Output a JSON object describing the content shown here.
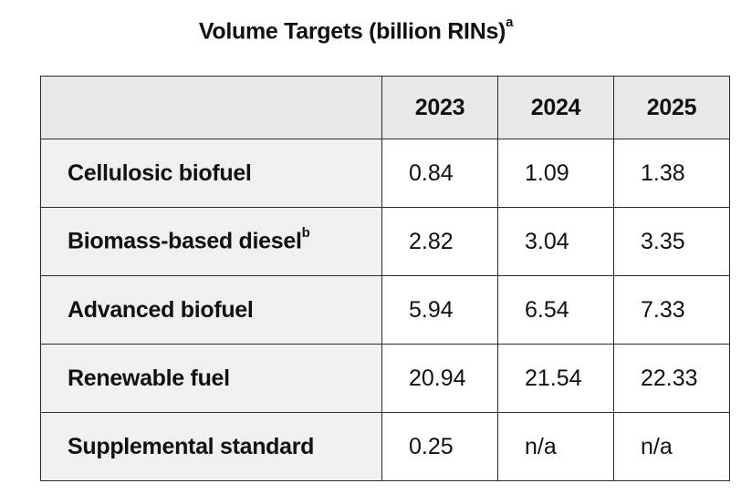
{
  "title": {
    "text": "Volume Targets (billion RINs)",
    "footnote_mark": "a"
  },
  "table": {
    "corner_header": "",
    "columns": [
      "2023",
      "2024",
      "2025"
    ],
    "rows": [
      {
        "label": "Cellulosic biofuel",
        "footnote_mark": "",
        "values": [
          "0.84",
          "1.09",
          "1.38"
        ]
      },
      {
        "label": "Biomass-based diesel",
        "footnote_mark": "b",
        "values": [
          "2.82",
          "3.04",
          "3.35"
        ]
      },
      {
        "label": "Advanced biofuel",
        "footnote_mark": "",
        "values": [
          "5.94",
          "6.54",
          "7.33"
        ]
      },
      {
        "label": "Renewable fuel",
        "footnote_mark": "",
        "values": [
          "20.94",
          "21.54",
          "22.33"
        ]
      },
      {
        "label": "Supplemental standard",
        "footnote_mark": "",
        "values": [
          "0.25",
          "n/a",
          "n/a"
        ]
      }
    ]
  },
  "colors": {
    "header_background": "#e8e8e8",
    "row_label_background": "#f0f0f0",
    "cell_background": "#ffffff",
    "border": "#2a2a2a",
    "text": "#111111"
  }
}
